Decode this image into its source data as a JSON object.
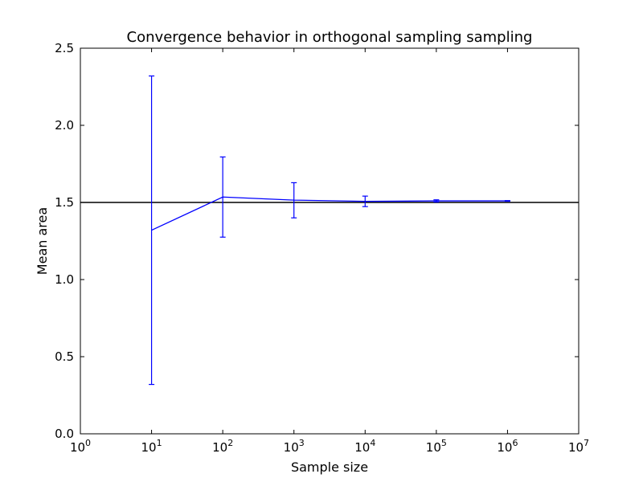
{
  "chart_data": {
    "type": "line",
    "title": "Convergence behavior in orthogonal sampling sampling",
    "xlabel": "Sample size",
    "ylabel": "Mean area",
    "xscale": "log",
    "xlim": [
      1,
      10000000
    ],
    "ylim": [
      0.0,
      2.5
    ],
    "x_ticks": [
      {
        "value": 1,
        "base": "10",
        "exp": "0"
      },
      {
        "value": 10,
        "base": "10",
        "exp": "1"
      },
      {
        "value": 100,
        "base": "10",
        "exp": "2"
      },
      {
        "value": 1000,
        "base": "10",
        "exp": "3"
      },
      {
        "value": 10000,
        "base": "10",
        "exp": "4"
      },
      {
        "value": 100000,
        "base": "10",
        "exp": "5"
      },
      {
        "value": 1000000,
        "base": "10",
        "exp": "6"
      },
      {
        "value": 10000000,
        "base": "10",
        "exp": "7"
      }
    ],
    "y_ticks": [
      {
        "value": 0.0,
        "label": "0.0"
      },
      {
        "value": 0.5,
        "label": "0.5"
      },
      {
        "value": 1.0,
        "label": "1.0"
      },
      {
        "value": 1.5,
        "label": "1.5"
      },
      {
        "value": 2.0,
        "label": "2.0"
      },
      {
        "value": 2.5,
        "label": "2.5"
      }
    ],
    "grid": false,
    "series": [
      {
        "color": "#0000ff",
        "x": [
          10,
          100,
          1000,
          10000,
          100000,
          1000000
        ],
        "y": [
          1.32,
          1.535,
          1.515,
          1.507,
          1.51,
          1.51
        ],
        "yerr_low": [
          0.32,
          1.275,
          1.4,
          1.473,
          1.503,
          1.508
        ],
        "yerr_high": [
          2.32,
          1.795,
          1.628,
          1.541,
          1.517,
          1.512
        ]
      }
    ],
    "reference_lines": [
      {
        "y": 1.5,
        "color": "#000000"
      }
    ]
  }
}
